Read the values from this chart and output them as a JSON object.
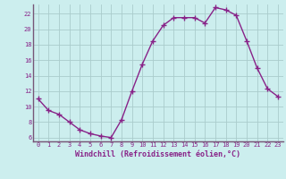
{
  "x": [
    0,
    1,
    2,
    3,
    4,
    5,
    6,
    7,
    8,
    9,
    10,
    11,
    12,
    13,
    14,
    15,
    16,
    17,
    18,
    19,
    20,
    21,
    22,
    23
  ],
  "y": [
    11.0,
    9.5,
    9.0,
    8.0,
    7.0,
    6.5,
    6.2,
    6.0,
    8.3,
    12.0,
    15.5,
    18.5,
    20.5,
    21.5,
    21.5,
    21.5,
    20.8,
    22.8,
    22.5,
    21.8,
    18.5,
    15.0,
    12.3,
    11.3
  ],
  "line_color": "#882288",
  "marker": "+",
  "markersize": 4,
  "linewidth": 1.0,
  "bg_color": "#cceeee",
  "grid_color": "#aacccc",
  "xlabel": "Windchill (Refroidissement éolien,°C)",
  "xlabel_color": "#882288",
  "tick_color": "#882288",
  "label_color": "#882288",
  "ylim": [
    5.5,
    23.2
  ],
  "xlim": [
    -0.5,
    23.5
  ],
  "yticks": [
    6,
    8,
    10,
    12,
    14,
    16,
    18,
    20,
    22
  ],
  "xticks": [
    0,
    1,
    2,
    3,
    4,
    5,
    6,
    7,
    8,
    9,
    10,
    11,
    12,
    13,
    14,
    15,
    16,
    17,
    18,
    19,
    20,
    21,
    22,
    23
  ],
  "spine_color": "#775577",
  "separator_color": "#553355"
}
